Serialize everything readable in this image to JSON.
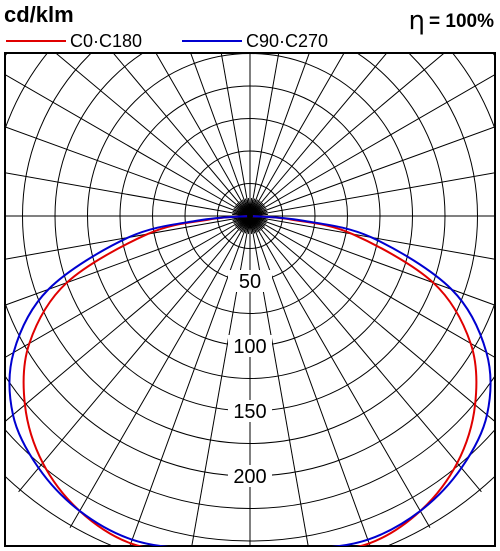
{
  "header": {
    "unit": "cd/klm",
    "efficiency_symbol": "η",
    "efficiency_value": "= 100%"
  },
  "chart_data": {
    "type": "polar",
    "unit": "cd/klm",
    "radial_ticks": [
      50,
      100,
      150,
      200
    ],
    "radial_tick_labels": [
      "50",
      "100",
      "150",
      "200"
    ],
    "angle_step_deg": 10,
    "radial_grid_step": 25,
    "grid": true,
    "efficiency": "100%",
    "series": [
      {
        "name": "C0·C180",
        "color": "#e00000",
        "angles": [
          0,
          10,
          20,
          30,
          40,
          50,
          60,
          70,
          80,
          85,
          90
        ],
        "right": [
          255,
          262,
          268,
          262,
          248,
          226,
          196,
          150,
          80,
          32,
          0
        ],
        "left": [
          255,
          262,
          268,
          262,
          248,
          226,
          196,
          150,
          80,
          32,
          0
        ]
      },
      {
        "name": "C90·C270",
        "color": "#0000d0",
        "angles": [
          0,
          10,
          20,
          30,
          40,
          50,
          60,
          70,
          80,
          85,
          90
        ],
        "right": [
          255,
          260,
          265,
          262,
          253,
          238,
          210,
          165,
          95,
          40,
          0
        ],
        "left": [
          255,
          260,
          265,
          262,
          253,
          238,
          210,
          165,
          95,
          40,
          0
        ]
      }
    ]
  }
}
